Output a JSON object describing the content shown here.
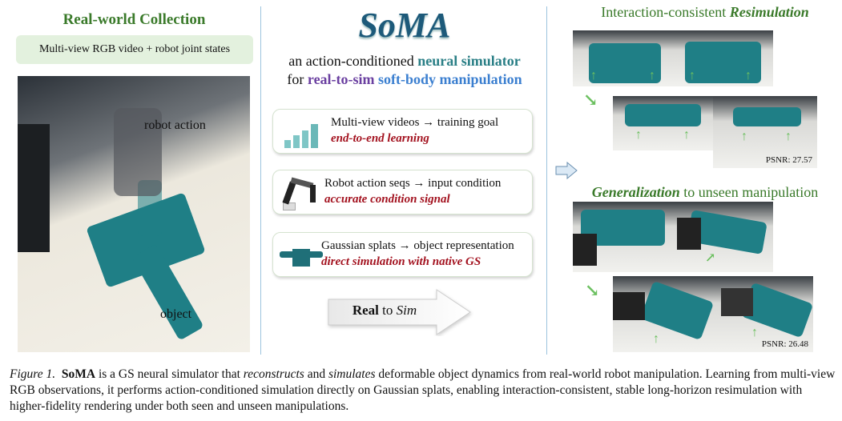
{
  "left": {
    "title": "Real-world Collection",
    "subtitle": "Multi-view RGB video + robot joint states",
    "label_robot": "robot action",
    "label_object": "object"
  },
  "middle": {
    "logo": "SoMA",
    "tagline_1_plain": "an action-conditioned",
    "tagline_1_colored": "neural simulator",
    "tagline_2_plain": "for",
    "tagline_2_purple": "real-to-sim",
    "tagline_2_blue": "soft-body manipulation",
    "cards": [
      {
        "icon": "chart-growth-icon",
        "line1": "Multi-view videos → training goal",
        "line2": "end-to-end learning"
      },
      {
        "icon": "robot-arm-icon",
        "line1": "Robot action seqs → input condition",
        "line2": "accurate condition signal"
      },
      {
        "icon": "shirt-icon",
        "line1": "Gaussian splats → object representation",
        "line2": "direct simulation with native GS"
      }
    ],
    "arrow_bold": "Real",
    "arrow_mid": "to",
    "arrow_italic": "Sim"
  },
  "right": {
    "title1_plain": "Interaction-consistent",
    "title1_em": "Resimulation",
    "psnr1": "PSNR: 27.57",
    "title2_em": "Generalization",
    "title2_plain": "to unseen manipulation",
    "psnr2": "PSNR: 26.48"
  },
  "caption": {
    "label": "Figure 1.",
    "name": "SoMA",
    "t1": "is a GS neural simulator that",
    "em1": "reconstructs",
    "t2": "and",
    "em2": "simulates",
    "t3": "deformable object dynamics from real-world robot manipulation. Learning from multi-view RGB observations, it performs action-conditioned simulation directly on Gaussian splats, enabling interaction-consistent, stable long-horizon resimulation with higher-fidelity rendering under both seen and unseen manipulations."
  },
  "colors": {
    "teal": "#1f7f86",
    "green_title": "#3a7a2a",
    "red_emphasis": "#a3121f",
    "purple": "#6a3fa0",
    "blue": "#3b7fd0"
  }
}
